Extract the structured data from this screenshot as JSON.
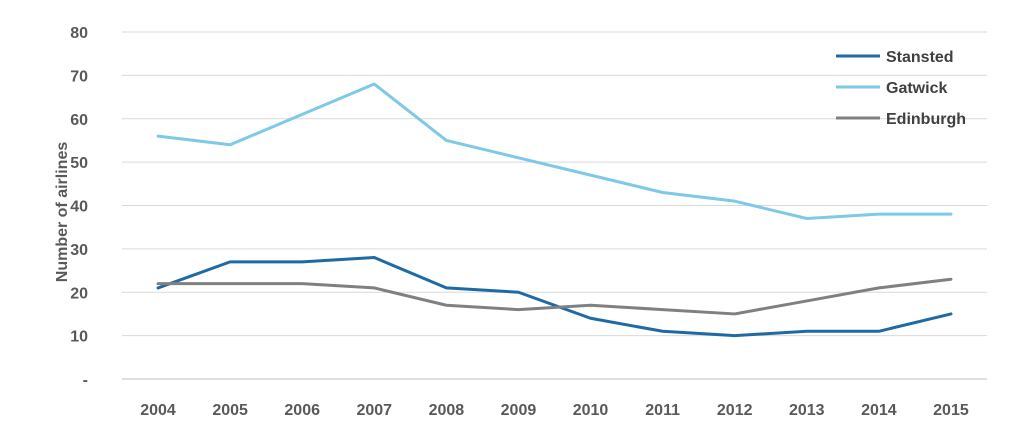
{
  "chart_data": {
    "type": "line",
    "title": "",
    "xlabel": "",
    "ylabel": "Number of airlines",
    "x": [
      "2004",
      "2005",
      "2006",
      "2007",
      "2008",
      "2009",
      "2010",
      "2011",
      "2012",
      "2013",
      "2014",
      "2015"
    ],
    "ylim": [
      0,
      80
    ],
    "yticks": [
      0,
      10,
      20,
      30,
      40,
      50,
      60,
      70,
      80
    ],
    "ytick_labels": [
      "-",
      "10",
      "20",
      "30",
      "40",
      "50",
      "60",
      "70",
      "80"
    ],
    "grid": true,
    "legend_position": "top-right",
    "series": [
      {
        "name": "Stansted",
        "color": "#1F6AA5",
        "values": [
          21,
          27,
          27,
          28,
          21,
          20,
          14,
          11,
          10,
          11,
          11,
          15
        ]
      },
      {
        "name": "Gatwick",
        "color": "#7EC8E8",
        "values": [
          56,
          54,
          61,
          68,
          55,
          51,
          47,
          43,
          41,
          37,
          38,
          38
        ]
      },
      {
        "name": "Edinburgh",
        "color": "#808080",
        "values": [
          22,
          22,
          22,
          21,
          17,
          16,
          17,
          16,
          15,
          18,
          21,
          23
        ]
      }
    ]
  }
}
